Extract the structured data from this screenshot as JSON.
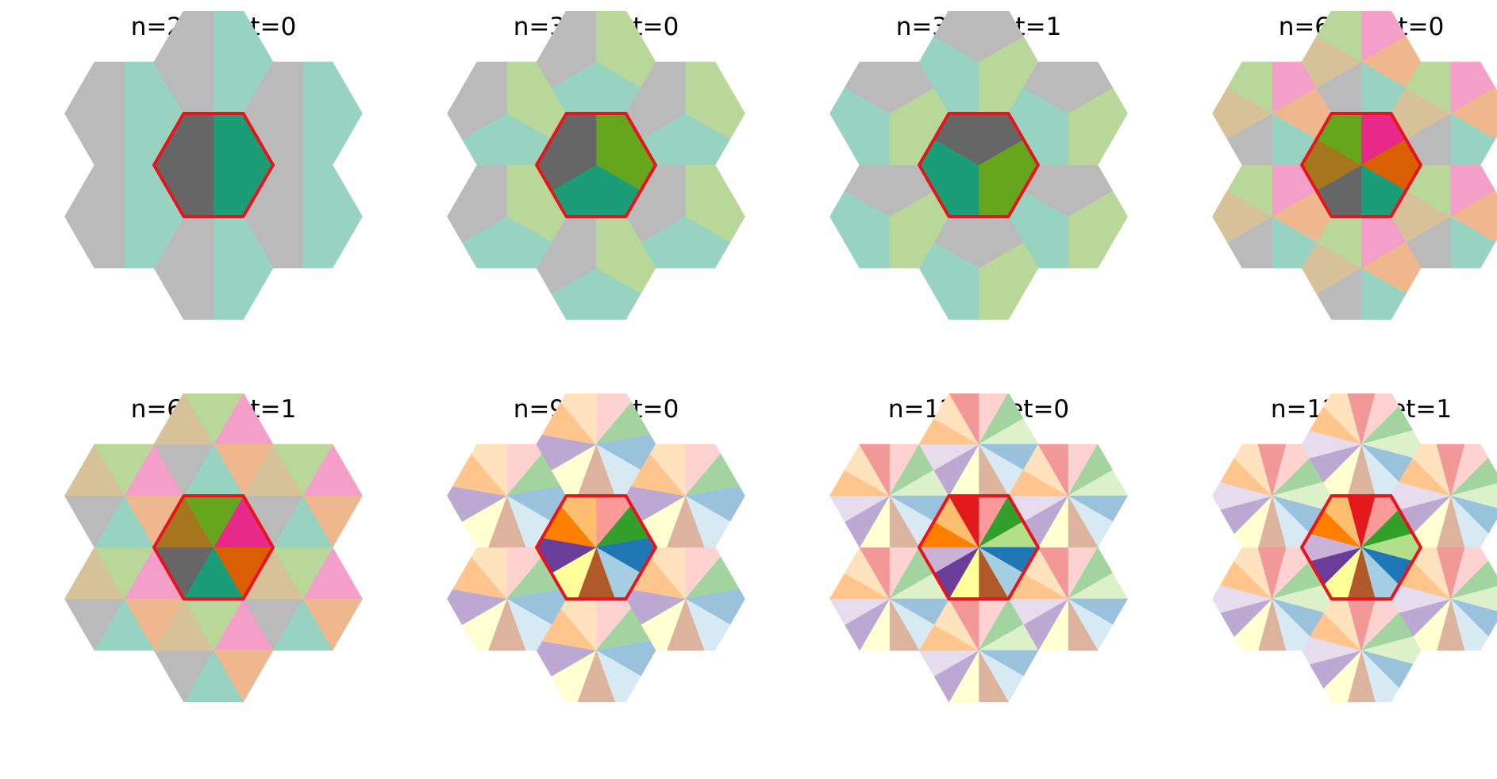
{
  "figure": {
    "outline_color": "#e8141c",
    "panels": [
      {
        "title": "n=2 offset=0",
        "n": 2,
        "offset": 0,
        "colors": [
          "#1b9e77",
          "#666666"
        ]
      },
      {
        "title": "n=3 offset=0",
        "n": 3,
        "offset": 0,
        "colors": [
          "#66a61e",
          "#1b9e77",
          "#666666"
        ]
      },
      {
        "title": "n=3 offset=1",
        "n": 3,
        "offset": 1,
        "colors": [
          "#66a61e",
          "#1b9e77",
          "#666666"
        ]
      },
      {
        "title": "n=6 offset=0",
        "n": 6,
        "offset": 0,
        "colors": [
          "#e7298a",
          "#d95f02",
          "#1b9e77",
          "#666666",
          "#a6761d",
          "#66a61e"
        ]
      },
      {
        "title": "n=6 offset=1",
        "n": 6,
        "offset": 1,
        "colors": [
          "#e7298a",
          "#d95f02",
          "#1b9e77",
          "#666666",
          "#a6761d",
          "#66a61e"
        ]
      },
      {
        "title": "n=9 offset=0",
        "n": 9,
        "offset": 0,
        "colors": [
          "#fb9a99",
          "#33a02c",
          "#1f78b4",
          "#a6cee3",
          "#b15928",
          "#ffff99",
          "#6a3d9a",
          "#ff7f00",
          "#fdbf6f"
        ]
      },
      {
        "title": "n=12 offset=0",
        "n": 12,
        "offset": 0,
        "colors": [
          "#fb9a99",
          "#33a02c",
          "#b2df8a",
          "#1f78b4",
          "#a6cee3",
          "#b15928",
          "#ffff99",
          "#6a3d9a",
          "#cab2d6",
          "#ff7f00",
          "#fdbf6f",
          "#e31a1c"
        ]
      },
      {
        "title": "n=12 offset=1",
        "n": 12,
        "offset": 1,
        "colors": [
          "#fb9a99",
          "#33a02c",
          "#b2df8a",
          "#1f78b4",
          "#a6cee3",
          "#b15928",
          "#ffff99",
          "#6a3d9a",
          "#cab2d6",
          "#ff7f00",
          "#fdbf6f",
          "#e31a1c"
        ]
      }
    ]
  }
}
